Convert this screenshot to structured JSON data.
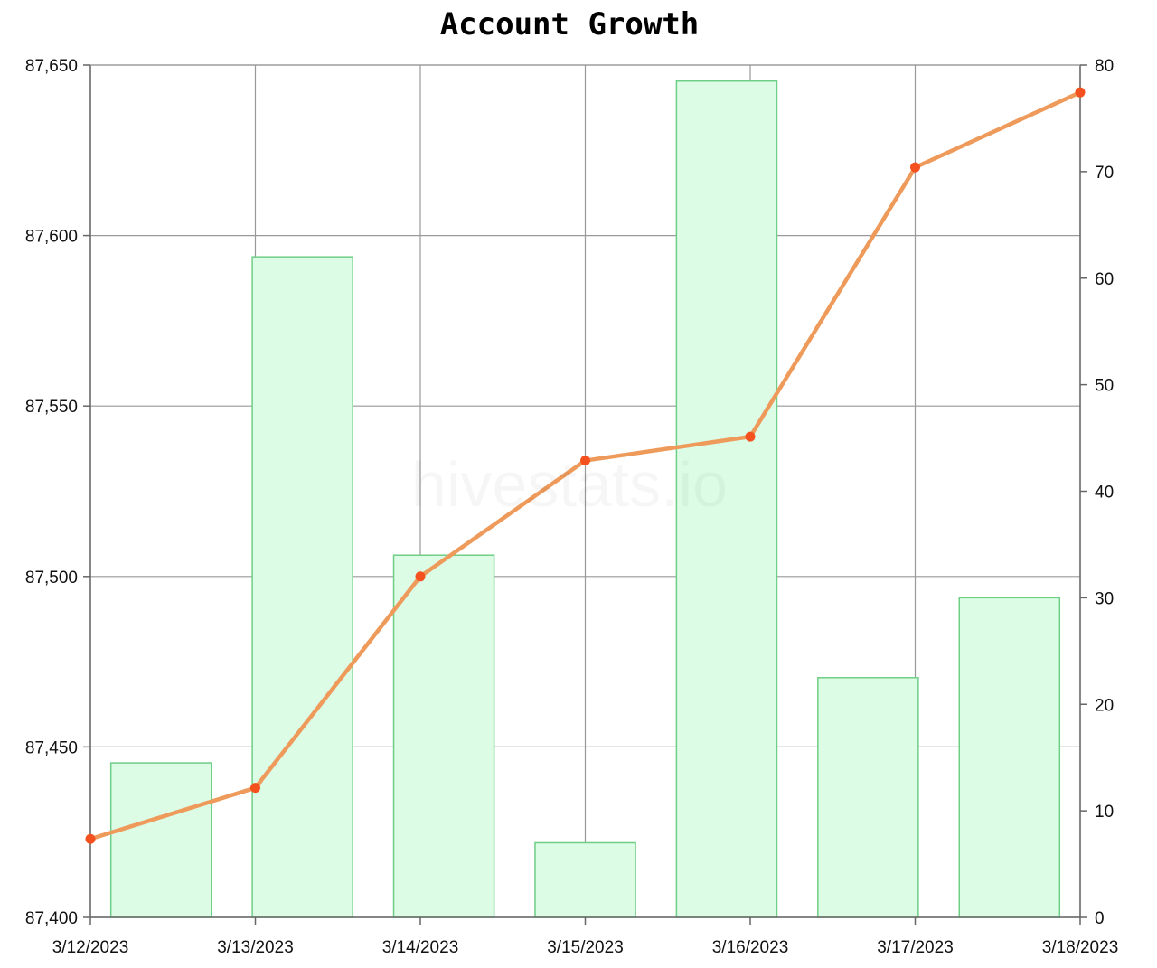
{
  "chart_data": {
    "type": "bar+line",
    "title": "Account Growth",
    "watermark": "hivestats.io",
    "categories": [
      "3/12/2023",
      "3/13/2023",
      "3/14/2023",
      "3/15/2023",
      "3/16/2023",
      "3/17/2023",
      "3/18/2023"
    ],
    "x_tick_labels": [
      "3/12/2023",
      "3/13/2023",
      "3/14/2023",
      "3/15/2023",
      "3/16/2023",
      "3/17/2023",
      "3/18/2023"
    ],
    "bars": {
      "axis": "right",
      "values": [
        14.5,
        62,
        34,
        7,
        78.5,
        22.5,
        30
      ],
      "fill": "#dcfce6",
      "stroke": "#6fce86"
    },
    "line": {
      "axis": "left",
      "x": [
        "3/12/2023",
        "3/13/2023",
        "3/14/2023",
        "3/15/2023",
        "3/16/2023",
        "3/17/2023",
        "3/18/2023"
      ],
      "values": [
        87423,
        87438,
        87500,
        87534,
        87541,
        87620,
        87642
      ],
      "color": "#ee9a5a",
      "marker_color": "#f4511e"
    },
    "y_left": {
      "range": [
        87400,
        87650
      ],
      "ticks": [
        "87,400",
        "87,450",
        "87,500",
        "87,550",
        "87,600",
        "87,650"
      ]
    },
    "y_right": {
      "range": [
        0,
        80
      ],
      "ticks": [
        "0",
        "10",
        "20",
        "30",
        "40",
        "50",
        "60",
        "70",
        "80"
      ]
    },
    "grid": true,
    "grid_color": "#999999"
  }
}
